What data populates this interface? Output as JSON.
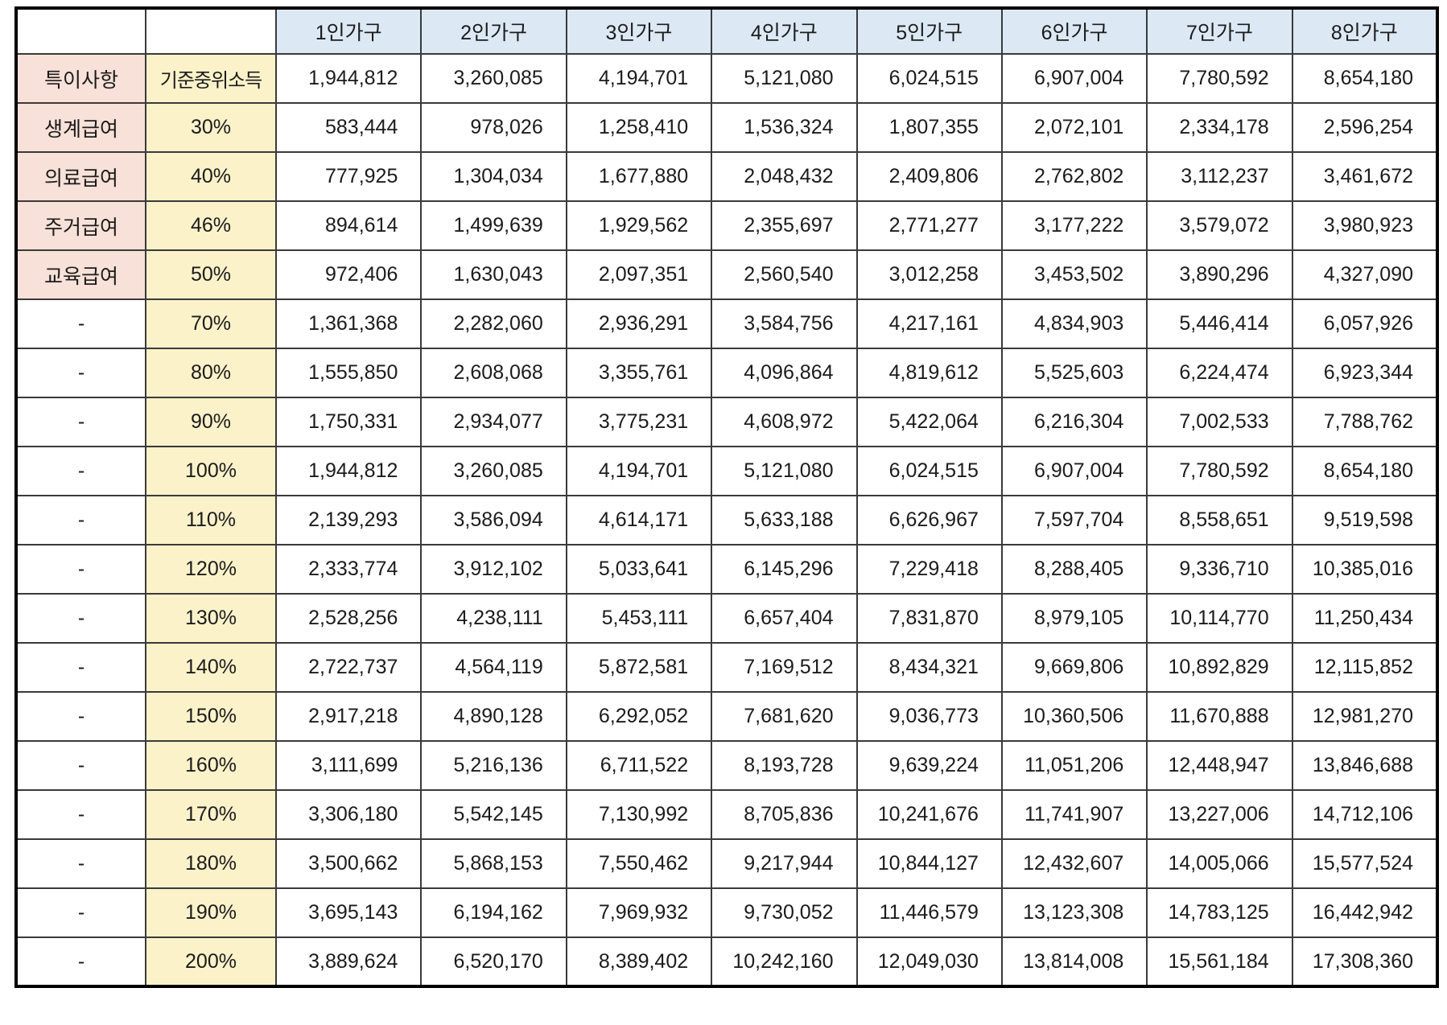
{
  "table": {
    "col_headers": [
      "",
      "",
      "1인가구",
      "2인가구",
      "3인가구",
      "4인가구",
      "5인가구",
      "6인가구",
      "7인가구",
      "8인가구"
    ],
    "rows": [
      {
        "category": "특이사항",
        "rate": "기준중위소득",
        "values": [
          "1,944,812",
          "3,260,085",
          "4,194,701",
          "5,121,080",
          "6,024,515",
          "6,907,004",
          "7,780,592",
          "8,654,180"
        ]
      },
      {
        "category": "생계급여",
        "rate": "30%",
        "values": [
          "583,444",
          "978,026",
          "1,258,410",
          "1,536,324",
          "1,807,355",
          "2,072,101",
          "2,334,178",
          "2,596,254"
        ]
      },
      {
        "category": "의료급여",
        "rate": "40%",
        "values": [
          "777,925",
          "1,304,034",
          "1,677,880",
          "2,048,432",
          "2,409,806",
          "2,762,802",
          "3,112,237",
          "3,461,672"
        ]
      },
      {
        "category": "주거급여",
        "rate": "46%",
        "values": [
          "894,614",
          "1,499,639",
          "1,929,562",
          "2,355,697",
          "2,771,277",
          "3,177,222",
          "3,579,072",
          "3,980,923"
        ]
      },
      {
        "category": "교육급여",
        "rate": "50%",
        "values": [
          "972,406",
          "1,630,043",
          "2,097,351",
          "2,560,540",
          "3,012,258",
          "3,453,502",
          "3,890,296",
          "4,327,090"
        ]
      },
      {
        "category": "-",
        "rate": "70%",
        "values": [
          "1,361,368",
          "2,282,060",
          "2,936,291",
          "3,584,756",
          "4,217,161",
          "4,834,903",
          "5,446,414",
          "6,057,926"
        ]
      },
      {
        "category": "-",
        "rate": "80%",
        "values": [
          "1,555,850",
          "2,608,068",
          "3,355,761",
          "4,096,864",
          "4,819,612",
          "5,525,603",
          "6,224,474",
          "6,923,344"
        ]
      },
      {
        "category": "-",
        "rate": "90%",
        "values": [
          "1,750,331",
          "2,934,077",
          "3,775,231",
          "4,608,972",
          "5,422,064",
          "6,216,304",
          "7,002,533",
          "7,788,762"
        ]
      },
      {
        "category": "-",
        "rate": "100%",
        "values": [
          "1,944,812",
          "3,260,085",
          "4,194,701",
          "5,121,080",
          "6,024,515",
          "6,907,004",
          "7,780,592",
          "8,654,180"
        ]
      },
      {
        "category": "-",
        "rate": "110%",
        "values": [
          "2,139,293",
          "3,586,094",
          "4,614,171",
          "5,633,188",
          "6,626,967",
          "7,597,704",
          "8,558,651",
          "9,519,598"
        ]
      },
      {
        "category": "-",
        "rate": "120%",
        "values": [
          "2,333,774",
          "3,912,102",
          "5,033,641",
          "6,145,296",
          "7,229,418",
          "8,288,405",
          "9,336,710",
          "10,385,016"
        ]
      },
      {
        "category": "-",
        "rate": "130%",
        "values": [
          "2,528,256",
          "4,238,111",
          "5,453,111",
          "6,657,404",
          "7,831,870",
          "8,979,105",
          "10,114,770",
          "11,250,434"
        ]
      },
      {
        "category": "-",
        "rate": "140%",
        "values": [
          "2,722,737",
          "4,564,119",
          "5,872,581",
          "7,169,512",
          "8,434,321",
          "9,669,806",
          "10,892,829",
          "12,115,852"
        ]
      },
      {
        "category": "-",
        "rate": "150%",
        "values": [
          "2,917,218",
          "4,890,128",
          "6,292,052",
          "7,681,620",
          "9,036,773",
          "10,360,506",
          "11,670,888",
          "12,981,270"
        ]
      },
      {
        "category": "-",
        "rate": "160%",
        "values": [
          "3,111,699",
          "5,216,136",
          "6,711,522",
          "8,193,728",
          "9,639,224",
          "11,051,206",
          "12,448,947",
          "13,846,688"
        ]
      },
      {
        "category": "-",
        "rate": "170%",
        "values": [
          "3,306,180",
          "5,542,145",
          "7,130,992",
          "8,705,836",
          "10,241,676",
          "11,741,907",
          "13,227,006",
          "14,712,106"
        ]
      },
      {
        "category": "-",
        "rate": "180%",
        "values": [
          "3,500,662",
          "5,868,153",
          "7,550,462",
          "9,217,944",
          "10,844,127",
          "12,432,607",
          "14,005,066",
          "15,577,524"
        ]
      },
      {
        "category": "-",
        "rate": "190%",
        "values": [
          "3,695,143",
          "6,194,162",
          "7,969,932",
          "9,730,052",
          "11,446,579",
          "13,123,308",
          "14,783,125",
          "16,442,942"
        ]
      },
      {
        "category": "-",
        "rate": "200%",
        "values": [
          "3,889,624",
          "6,520,170",
          "8,389,402",
          "10,242,160",
          "12,049,030",
          "13,814,008",
          "15,561,184",
          "17,308,360"
        ]
      }
    ]
  },
  "colors": {
    "header_bg": "#dce9f4",
    "category_bg": "#f8e1d8",
    "rate_bg": "#fcf2ca",
    "grid": "#3a3a3a",
    "outer_border": "#000000",
    "text": "#1b1b1b"
  }
}
